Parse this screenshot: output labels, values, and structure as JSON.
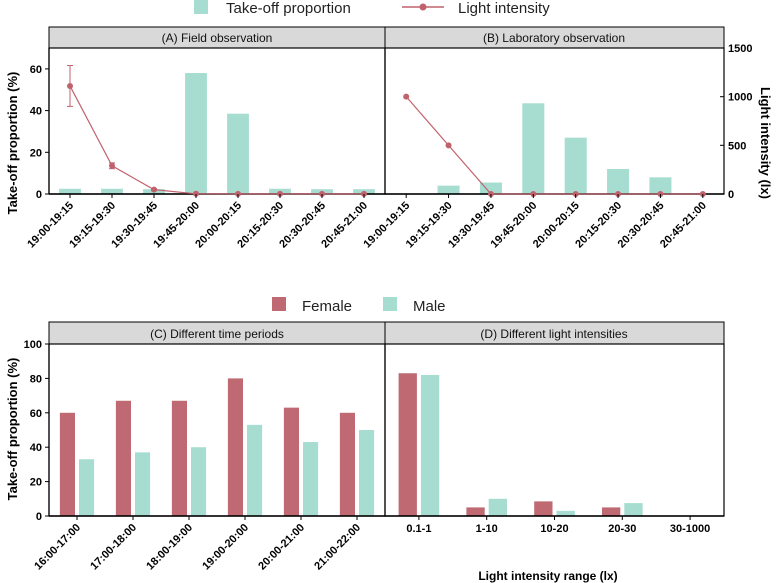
{
  "colors": {
    "female": "#bf6a73",
    "male": "#a6ddd0",
    "line": "#c0626c",
    "strip": "#d9d9d9"
  },
  "legend_top": {
    "bar_label": "Take-off proportion",
    "line_label": "Light intensity"
  },
  "legend_bottom": {
    "female_label": "Female",
    "male_label": "Male"
  },
  "chart_data": [
    {
      "id": "A",
      "type": "bar+line",
      "title": "(A) Field observation",
      "ylabel": "Take-off proportion (%)",
      "y2label": "Light intensity (lx)",
      "ylim": [
        0,
        70
      ],
      "yticks": [
        "0",
        "20",
        "40",
        "60"
      ],
      "y2lim": [
        0,
        1500
      ],
      "y2ticks": [
        "0",
        "500",
        "1000",
        "1500"
      ],
      "categories": [
        "19:00-19:15",
        "19:15-19:30",
        "19:30-19:45",
        "19:45-20:00",
        "20:00-20:15",
        "20:15-20:30",
        "20:30-20:45",
        "20:45-21:00"
      ],
      "bar_values": [
        2.5,
        2.5,
        2.3,
        58,
        38.5,
        2.5,
        2.3,
        2.3
      ],
      "line_values": [
        1110,
        290,
        45,
        2,
        1,
        1,
        1,
        1
      ],
      "line_error": [
        210,
        30,
        10,
        0,
        0,
        0,
        0,
        0
      ]
    },
    {
      "id": "B",
      "type": "bar+line",
      "title": "(B) Laboratory observation",
      "ylabel": "Take-off proportion (%)",
      "y2label": "Light intensity (lx)",
      "ylim": [
        0,
        70
      ],
      "y2lim": [
        0,
        1500
      ],
      "categories": [
        "19:00-19:15",
        "19:15-19:30",
        "19:30-19:45",
        "19:45-20:00",
        "20:00-20:15",
        "20:15-20:30",
        "20:30-20:45",
        "20:45-21:00"
      ],
      "bar_values": [
        0,
        4,
        5.5,
        43.5,
        27,
        12,
        8,
        0
      ],
      "line_values": [
        1000,
        500,
        0,
        0,
        0,
        0,
        0,
        0
      ]
    },
    {
      "id": "C",
      "type": "bar",
      "title": "(C) Different time periods",
      "ylabel": "Take-off proportion (%)",
      "ylim": [
        0,
        100
      ],
      "yticks": [
        "0",
        "20",
        "40",
        "60",
        "80",
        "100"
      ],
      "categories": [
        "16:00-17:00",
        "17:00-18:00",
        "18:00-19:00",
        "19:00-20:00",
        "20:00-21:00",
        "21:00-22:00"
      ],
      "series": [
        {
          "name": "Female",
          "values": [
            60,
            67,
            67,
            80,
            63,
            60
          ]
        },
        {
          "name": "Male",
          "values": [
            33,
            37,
            40,
            53,
            43,
            50
          ]
        }
      ]
    },
    {
      "id": "D",
      "type": "bar",
      "title": "(D) Different light intensities",
      "xlabel": "Light intensity range (lx)",
      "ylim": [
        0,
        100
      ],
      "categories": [
        "0.1-1",
        "1-10",
        "10-20",
        "20-30",
        "30-1000"
      ],
      "series": [
        {
          "name": "Female",
          "values": [
            83,
            5,
            8.5,
            5,
            0
          ]
        },
        {
          "name": "Male",
          "values": [
            82,
            10,
            3,
            7.5,
            0
          ]
        }
      ]
    }
  ]
}
